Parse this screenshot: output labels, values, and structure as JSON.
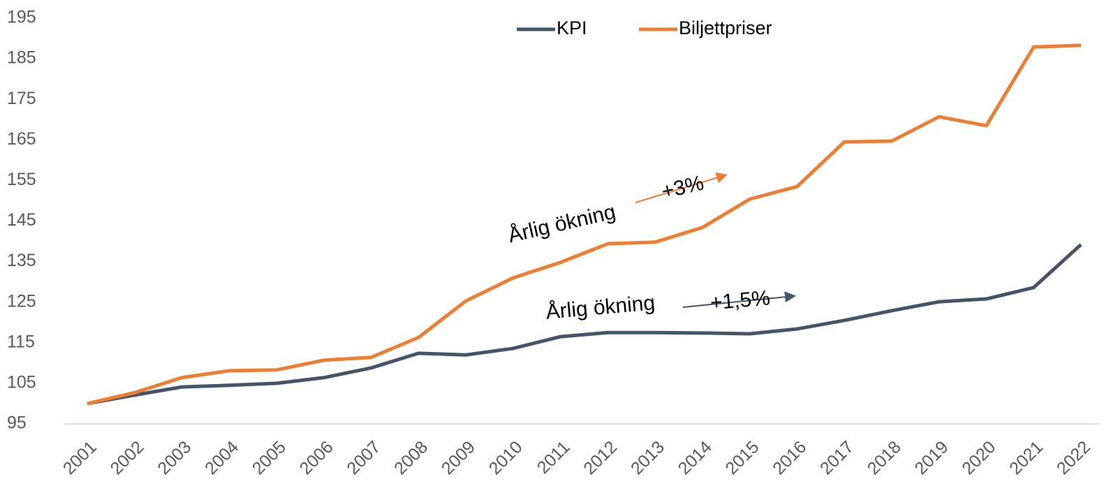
{
  "chart_data": {
    "type": "line",
    "x": [
      "2001",
      "2002",
      "2003",
      "2004",
      "2005",
      "2006",
      "2007",
      "2008",
      "2009",
      "2010",
      "2011",
      "2012",
      "2013",
      "2014",
      "2015",
      "2016",
      "2017",
      "2018",
      "2019",
      "2020",
      "2021",
      "2022"
    ],
    "series": [
      {
        "name": "KPI",
        "color": "#44546a",
        "values": [
          100,
          102.1,
          104.1,
          104.5,
          105,
          106.4,
          108.8,
          112.4,
          112.0,
          113.6,
          116.5,
          117.5,
          117.5,
          117.4,
          117.2,
          118.4,
          120.5,
          122.9,
          125.1,
          125.8,
          128.6,
          139.2
        ]
      },
      {
        "name": "Biljettpriser",
        "color": "#ed7d31",
        "values": [
          100,
          102.7,
          106.4,
          108.1,
          108.3,
          110.7,
          111.4,
          116.3,
          125.3,
          131,
          134.8,
          139.4,
          139.8,
          143.4,
          150.4,
          153.5,
          164.5,
          164.7,
          170.7,
          168.5,
          187.9,
          188.3
        ]
      }
    ],
    "ylim": [
      95,
      195
    ],
    "yticks": [
      95,
      105,
      115,
      125,
      135,
      145,
      155,
      165,
      175,
      185,
      195
    ],
    "grid": false,
    "legend": "top",
    "annotations": [
      "Årlig ökning",
      "+3%",
      "Årlig ökning",
      "+1,5%"
    ]
  }
}
